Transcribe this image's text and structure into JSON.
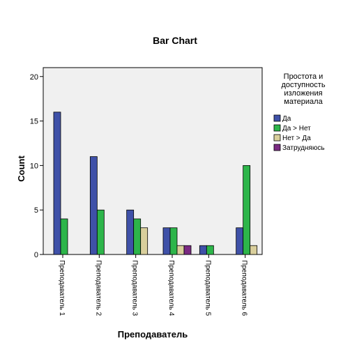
{
  "chart_data": {
    "type": "bar",
    "title": "Bar Chart",
    "xlabel": "Преподаватель",
    "ylabel": "Count",
    "ylim": [
      0,
      21
    ],
    "yticks": [
      0,
      5,
      10,
      15,
      20
    ],
    "grid": false,
    "legend_position": "right",
    "legend_title": "Простота и доступность изложения материала",
    "categories": [
      "Преподаватель 1",
      "Преподаватель 2",
      "Преподаватель 3",
      "Преподаватель 4",
      "Преподаватель 5",
      "Преподаватель 6"
    ],
    "series": [
      {
        "name": "Да",
        "color": "#3f51a8",
        "values": [
          16,
          11,
          5,
          3,
          1,
          3
        ]
      },
      {
        "name": "Да > Нет",
        "color": "#2db54a",
        "values": [
          4,
          5,
          4,
          3,
          1,
          10
        ]
      },
      {
        "name": "Нет > Да",
        "color": "#d9cf9c",
        "values": [
          0,
          0,
          3,
          1,
          0,
          1
        ]
      },
      {
        "name": "Затрудняюсь",
        "color": "#7a2a82",
        "values": [
          0,
          0,
          0,
          1,
          0,
          0
        ]
      }
    ]
  }
}
